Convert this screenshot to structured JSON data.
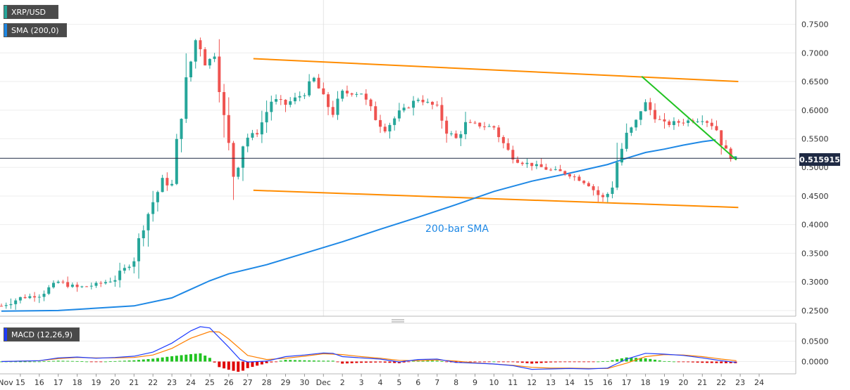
{
  "symbol_label": "XRP/USD",
  "sma_label": "SMA (200,0)",
  "macd_label": "MACD (12,26,9)",
  "annotation": "200-bar SMA",
  "last_price": "0.515915",
  "colors": {
    "up": "#26a69a",
    "down": "#ef5350",
    "sma": "#1e88e5",
    "channel": "#ff8c00",
    "trendline": "#22c322",
    "macd_line": "#1e3cff",
    "signal_line": "#ff7f00",
    "hist_pos": "#22c322",
    "hist_neg": "#e00000",
    "price_box": "#1f2a44"
  },
  "chart_data": [
    {
      "type": "candlestick",
      "title": "XRP/USD",
      "ylim": [
        0.24,
        0.79
      ],
      "y_ticks": [
        "0.2500",
        "0.3000",
        "0.3500",
        "0.4000",
        "0.4500",
        "0.5000",
        "0.5500",
        "0.6000",
        "0.6500",
        "0.7000",
        "0.7500"
      ],
      "x_ticks": [
        "Nov",
        "15",
        "16",
        "17",
        "18",
        "19",
        "20",
        "21",
        "22",
        "23",
        "24",
        "25",
        "26",
        "27",
        "28",
        "29",
        "30",
        "Dec",
        "2",
        "3",
        "4",
        "5",
        "6",
        "7",
        "8",
        "9",
        "10",
        "11",
        "12",
        "13",
        "14",
        "15",
        "16",
        "17",
        "18",
        "19",
        "20",
        "21",
        "22",
        "23",
        "24"
      ],
      "last_value": 0.515915,
      "price_path": [
        [
          0,
          0.258
        ],
        [
          1,
          0.272
        ],
        [
          2,
          0.277
        ],
        [
          3,
          0.3
        ],
        [
          4,
          0.29
        ],
        [
          5,
          0.295
        ],
        [
          6,
          0.305
        ],
        [
          7,
          0.34
        ],
        [
          7.5,
          0.4
        ],
        [
          8,
          0.44
        ],
        [
          8.5,
          0.475
        ],
        [
          9,
          0.47
        ],
        [
          9.5,
          0.6
        ],
        [
          9.9,
          0.67
        ],
        [
          10.3,
          0.73
        ],
        [
          10.8,
          0.68
        ],
        [
          11.3,
          0.7
        ],
        [
          11.8,
          0.57
        ],
        [
          12.3,
          0.48
        ],
        [
          12.8,
          0.55
        ],
        [
          13.5,
          0.56
        ],
        [
          14.3,
          0.62
        ],
        [
          15,
          0.61
        ],
        [
          16,
          0.63
        ],
        [
          16.5,
          0.655
        ],
        [
          17,
          0.62
        ],
        [
          17.5,
          0.595
        ],
        [
          18,
          0.63
        ],
        [
          19,
          0.63
        ],
        [
          19.5,
          0.6
        ],
        [
          20.2,
          0.565
        ],
        [
          21,
          0.595
        ],
        [
          22,
          0.62
        ],
        [
          23,
          0.605
        ],
        [
          23.5,
          0.565
        ],
        [
          24,
          0.55
        ],
        [
          24.5,
          0.575
        ],
        [
          25,
          0.575
        ],
        [
          26,
          0.57
        ],
        [
          26.7,
          0.53
        ],
        [
          27.3,
          0.51
        ],
        [
          28,
          0.505
        ],
        [
          29,
          0.495
        ],
        [
          29.8,
          0.49
        ],
        [
          30.5,
          0.48
        ],
        [
          31,
          0.47
        ],
        [
          31.7,
          0.445
        ],
        [
          32.2,
          0.46
        ],
        [
          32.5,
          0.51
        ],
        [
          33,
          0.555
        ],
        [
          33.5,
          0.58
        ],
        [
          33.9,
          0.615
        ],
        [
          34.5,
          0.59
        ],
        [
          35,
          0.575
        ],
        [
          36,
          0.58
        ],
        [
          37,
          0.585
        ],
        [
          37.7,
          0.57
        ],
        [
          38,
          0.545
        ],
        [
          38.3,
          0.525
        ],
        [
          38.8,
          0.515
        ]
      ],
      "sma_200": [
        [
          0,
          0.249
        ],
        [
          3,
          0.25
        ],
        [
          7,
          0.258
        ],
        [
          9,
          0.272
        ],
        [
          10,
          0.287
        ],
        [
          11,
          0.302
        ],
        [
          12,
          0.314
        ],
        [
          14,
          0.33
        ],
        [
          16,
          0.35
        ],
        [
          18,
          0.37
        ],
        [
          20,
          0.392
        ],
        [
          22,
          0.413
        ],
        [
          24,
          0.435
        ],
        [
          26,
          0.458
        ],
        [
          28,
          0.476
        ],
        [
          30,
          0.49
        ],
        [
          32,
          0.505
        ],
        [
          33,
          0.516
        ],
        [
          34,
          0.526
        ],
        [
          35,
          0.532
        ],
        [
          36,
          0.539
        ],
        [
          37,
          0.545
        ],
        [
          37.7,
          0.548
        ]
      ],
      "channel_upper": [
        [
          13.3,
          0.69
        ],
        [
          38.9,
          0.65
        ]
      ],
      "channel_lower": [
        [
          13.3,
          0.46
        ],
        [
          38.9,
          0.43
        ]
      ],
      "resistance_line": [
        [
          33.8,
          0.659
        ],
        [
          38.8,
          0.513
        ]
      ]
    },
    {
      "type": "macd",
      "title": "MACD (12,26,9)",
      "ylim": [
        -0.03,
        0.09
      ],
      "y_ticks": [
        "0.0000",
        "0.0500"
      ],
      "macd_line": [
        [
          0,
          0.0
        ],
        [
          2,
          0.002
        ],
        [
          3,
          0.009
        ],
        [
          4,
          0.011
        ],
        [
          5,
          0.008
        ],
        [
          6,
          0.01
        ],
        [
          7,
          0.013
        ],
        [
          8,
          0.023
        ],
        [
          9,
          0.045
        ],
        [
          10,
          0.075
        ],
        [
          10.5,
          0.085
        ],
        [
          11,
          0.082
        ],
        [
          12,
          0.035
        ],
        [
          12.6,
          0.005
        ],
        [
          13,
          -0.001
        ],
        [
          14,
          0.001
        ],
        [
          15,
          0.012
        ],
        [
          16,
          0.016
        ],
        [
          17,
          0.021
        ],
        [
          17.5,
          0.02
        ],
        [
          18,
          0.012
        ],
        [
          19,
          0.009
        ],
        [
          20,
          0.006
        ],
        [
          21,
          -0.001
        ],
        [
          22,
          0.005
        ],
        [
          23,
          0.006
        ],
        [
          24,
          -0.002
        ],
        [
          25,
          -0.004
        ],
        [
          26,
          -0.006
        ],
        [
          27,
          -0.01
        ],
        [
          28,
          -0.019
        ],
        [
          29,
          -0.018
        ],
        [
          30,
          -0.017
        ],
        [
          31,
          -0.018
        ],
        [
          32,
          -0.016
        ],
        [
          33,
          0.006
        ],
        [
          34,
          0.02
        ],
        [
          35,
          0.018
        ],
        [
          36,
          0.015
        ],
        [
          37,
          0.009
        ],
        [
          38,
          0.002
        ],
        [
          38.8,
          -0.002
        ]
      ],
      "signal_line": [
        [
          0,
          0.0
        ],
        [
          2,
          0.002
        ],
        [
          3,
          0.007
        ],
        [
          4,
          0.01
        ],
        [
          5,
          0.009
        ],
        [
          6,
          0.009
        ],
        [
          7,
          0.01
        ],
        [
          8,
          0.016
        ],
        [
          9,
          0.032
        ],
        [
          10,
          0.057
        ],
        [
          11,
          0.073
        ],
        [
          11.5,
          0.072
        ],
        [
          12,
          0.055
        ],
        [
          13,
          0.015
        ],
        [
          14,
          0.005
        ],
        [
          15,
          0.008
        ],
        [
          16,
          0.013
        ],
        [
          17,
          0.019
        ],
        [
          18,
          0.017
        ],
        [
          19,
          0.012
        ],
        [
          20,
          0.008
        ],
        [
          21,
          0.003
        ],
        [
          22,
          0.002
        ],
        [
          23,
          0.004
        ],
        [
          24,
          0.001
        ],
        [
          25,
          -0.003
        ],
        [
          26,
          -0.006
        ],
        [
          27,
          -0.009
        ],
        [
          28,
          -0.014
        ],
        [
          29,
          -0.016
        ],
        [
          30,
          -0.016
        ],
        [
          31,
          -0.017
        ],
        [
          32,
          -0.017
        ],
        [
          33,
          -0.004
        ],
        [
          34,
          0.012
        ],
        [
          35,
          0.017
        ],
        [
          36,
          0.016
        ],
        [
          37,
          0.012
        ],
        [
          38,
          0.006
        ],
        [
          38.8,
          0.002
        ]
      ]
    }
  ]
}
